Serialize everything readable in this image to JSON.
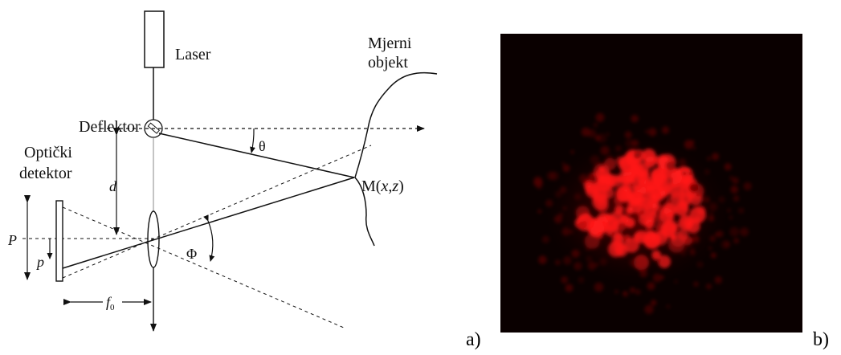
{
  "diagram": {
    "laser_label": "Laser",
    "deflektor_label": "Deflektor",
    "object_label_line1": "Mjerni",
    "object_label_line2": "objekt",
    "detector_label_line1": "Optički",
    "detector_label_line2": "detektor",
    "point_label": "M(x,z)",
    "theta_label": "θ",
    "phi_label": "Φ",
    "d_label": "d",
    "P_label": "P",
    "p_label": "p",
    "f0_label": "f",
    "f0_sub": "0"
  },
  "panels": {
    "a_label": "a)",
    "b_label": "b)"
  },
  "photo": {
    "spot_color": "#ff1a1a",
    "background_color": "#0a0000"
  }
}
